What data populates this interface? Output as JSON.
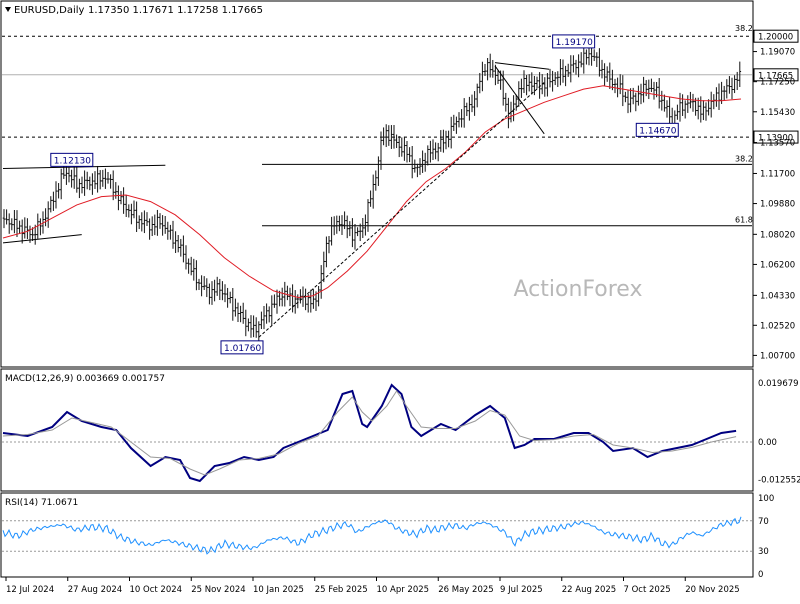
{
  "header": {
    "symbol": "EURUSD,Daily",
    "ohlc": "1.17350 1.17671 1.17258 1.17665"
  },
  "watermark": "ActionForex",
  "colors": {
    "price_bar": "#111111",
    "ma": "#e01b24",
    "macd": "#000080",
    "signal": "#999999",
    "rsi": "#1e90ff",
    "label_box": "#000080"
  },
  "chart_data": [
    {
      "type": "line",
      "title": "EURUSD,Daily",
      "price_axis_ticks": [
        "1.19070",
        "1.17250",
        "1.15430",
        "1.13570",
        "1.11700",
        "1.09880",
        "1.08020",
        "1.06200",
        "1.04330",
        "1.02520",
        "1.00700"
      ],
      "x_tick_labels": [
        "12 Jul 2024",
        "27 Aug 2024",
        "10 Oct 2024",
        "25 Nov 2024",
        "10 Jan 2025",
        "25 Feb 2025",
        "10 Apr 2025",
        "26 May 2025",
        "9 Jul 2025",
        "22 Aug 2025",
        "7 Oct 2025",
        "20 Nov 2025"
      ],
      "ylim": [
        1.003,
        1.211
      ],
      "levels": [
        {
          "value": 1.2,
          "label": "1.20000",
          "fib": "38.2"
        },
        {
          "value": 1.139,
          "label": "1.13900"
        }
      ],
      "current_price": {
        "value": 1.17665,
        "label": "1.17665"
      },
      "fib_levels": [
        {
          "value": 1.1225,
          "label": "38.2"
        },
        {
          "value": 1.0854,
          "label": "61.8"
        }
      ],
      "annotations": [
        {
          "label": "1.19170",
          "value": 1.1917
        },
        {
          "label": "1.14670",
          "value": 1.1467
        },
        {
          "label": "1.12130",
          "value": 1.1213
        },
        {
          "label": "1.01760",
          "value": 1.0176
        }
      ],
      "price_path": [
        [
          0,
          1.09
        ],
        [
          3,
          1.085
        ],
        [
          6,
          1.08
        ],
        [
          8,
          1.088
        ],
        [
          10,
          1.1
        ],
        [
          12,
          1.115
        ],
        [
          13,
          1.118
        ],
        [
          15,
          1.11
        ],
        [
          18,
          1.112
        ],
        [
          21,
          1.115
        ],
        [
          22,
          1.11
        ],
        [
          24,
          1.1
        ],
        [
          27,
          1.09
        ],
        [
          30,
          1.085
        ],
        [
          32,
          1.088
        ],
        [
          34,
          1.08
        ],
        [
          36,
          1.072
        ],
        [
          38,
          1.06
        ],
        [
          40,
          1.05
        ],
        [
          42,
          1.045
        ],
        [
          44,
          1.048
        ],
        [
          46,
          1.04
        ],
        [
          48,
          1.032
        ],
        [
          50,
          1.025
        ],
        [
          51,
          1.022
        ],
        [
          53,
          1.03
        ],
        [
          55,
          1.038
        ],
        [
          57,
          1.045
        ],
        [
          59,
          1.04
        ],
        [
          61,
          1.042
        ],
        [
          63,
          1.038
        ],
        [
          64,
          1.045
        ],
        [
          65,
          1.06
        ],
        [
          66,
          1.078
        ],
        [
          67,
          1.085
        ],
        [
          69,
          1.088
        ],
        [
          71,
          1.08
        ],
        [
          73,
          1.082
        ],
        [
          74,
          1.095
        ],
        [
          75,
          1.105
        ],
        [
          76,
          1.12
        ],
        [
          77,
          1.138
        ],
        [
          78,
          1.142
        ],
        [
          80,
          1.135
        ],
        [
          82,
          1.13
        ],
        [
          84,
          1.118
        ],
        [
          86,
          1.128
        ],
        [
          88,
          1.132
        ],
        [
          90,
          1.138
        ],
        [
          92,
          1.148
        ],
        [
          94,
          1.155
        ],
        [
          96,
          1.162
        ],
        [
          97,
          1.175
        ],
        [
          98,
          1.182
        ],
        [
          100,
          1.178
        ],
        [
          101,
          1.172
        ],
        [
          102,
          1.16
        ],
        [
          103,
          1.15
        ],
        [
          104,
          1.16
        ],
        [
          105,
          1.17
        ],
        [
          107,
          1.172
        ],
        [
          109,
          1.17
        ],
        [
          111,
          1.172
        ],
        [
          112,
          1.175
        ],
        [
          114,
          1.178
        ],
        [
          116,
          1.182
        ],
        [
          118,
          1.186
        ],
        [
          119,
          1.19
        ],
        [
          120,
          1.188
        ],
        [
          122,
          1.178
        ],
        [
          124,
          1.172
        ],
        [
          126,
          1.166
        ],
        [
          127,
          1.16
        ],
        [
          129,
          1.164
        ],
        [
          131,
          1.17
        ],
        [
          133,
          1.166
        ],
        [
          134,
          1.16
        ],
        [
          135,
          1.155
        ],
        [
          136,
          1.147
        ],
        [
          137,
          1.155
        ],
        [
          139,
          1.16
        ],
        [
          141,
          1.158
        ],
        [
          142,
          1.153
        ],
        [
          144,
          1.16
        ],
        [
          146,
          1.166
        ],
        [
          148,
          1.17
        ],
        [
          150,
          1.17665
        ]
      ],
      "ma_path": [
        [
          0,
          1.078
        ],
        [
          5,
          1.082
        ],
        [
          10,
          1.09
        ],
        [
          15,
          1.098
        ],
        [
          20,
          1.103
        ],
        [
          25,
          1.104
        ],
        [
          30,
          1.1
        ],
        [
          35,
          1.092
        ],
        [
          40,
          1.08
        ],
        [
          45,
          1.066
        ],
        [
          50,
          1.055
        ],
        [
          55,
          1.046
        ],
        [
          60,
          1.042
        ],
        [
          63,
          1.043
        ],
        [
          66,
          1.048
        ],
        [
          70,
          1.058
        ],
        [
          74,
          1.07
        ],
        [
          78,
          1.085
        ],
        [
          82,
          1.1
        ],
        [
          86,
          1.112
        ],
        [
          90,
          1.12
        ],
        [
          94,
          1.13
        ],
        [
          98,
          1.142
        ],
        [
          102,
          1.15
        ],
        [
          106,
          1.155
        ],
        [
          110,
          1.16
        ],
        [
          114,
          1.164
        ],
        [
          118,
          1.168
        ],
        [
          122,
          1.17
        ],
        [
          126,
          1.168
        ],
        [
          130,
          1.166
        ],
        [
          134,
          1.164
        ],
        [
          138,
          1.162
        ],
        [
          142,
          1.161
        ],
        [
          146,
          1.161
        ],
        [
          150,
          1.162
        ]
      ]
    },
    {
      "type": "line",
      "title": "MACD(12,26,9) 0.003669 0.001757",
      "y_ticks": [
        "0.019679",
        "0.00",
        "-0.012552"
      ],
      "ylim": [
        -0.015,
        0.022
      ],
      "zero": 0.0,
      "series": [
        {
          "name": "MACD",
          "values": [
            [
              0,
              0.003
            ],
            [
              5,
              0.002
            ],
            [
              10,
              0.005
            ],
            [
              13,
              0.01
            ],
            [
              16,
              0.007
            ],
            [
              20,
              0.005
            ],
            [
              23,
              0.004
            ],
            [
              26,
              -0.002
            ],
            [
              30,
              -0.008
            ],
            [
              33,
              -0.005
            ],
            [
              36,
              -0.006
            ],
            [
              38,
              -0.012
            ],
            [
              40,
              -0.013
            ],
            [
              43,
              -0.008
            ],
            [
              46,
              -0.007
            ],
            [
              49,
              -0.005
            ],
            [
              52,
              -0.006
            ],
            [
              55,
              -0.005
            ],
            [
              57,
              -0.002
            ],
            [
              60,
              0.0
            ],
            [
              63,
              0.002
            ],
            [
              66,
              0.004
            ],
            [
              69,
              0.016
            ],
            [
              71,
              0.017
            ],
            [
              73,
              0.006
            ],
            [
              74,
              0.005
            ],
            [
              77,
              0.012
            ],
            [
              79,
              0.019
            ],
            [
              81,
              0.016
            ],
            [
              83,
              0.005
            ],
            [
              85,
              0.002
            ],
            [
              87,
              0.004
            ],
            [
              89,
              0.006
            ],
            [
              92,
              0.004
            ],
            [
              96,
              0.009
            ],
            [
              99,
              0.012
            ],
            [
              102,
              0.008
            ],
            [
              104,
              -0.002
            ],
            [
              106,
              -0.001
            ],
            [
              108,
              0.001
            ],
            [
              112,
              0.001
            ],
            [
              116,
              0.003
            ],
            [
              119,
              0.003
            ],
            [
              122,
              0.0
            ],
            [
              124,
              -0.003
            ],
            [
              128,
              -0.002
            ],
            [
              131,
              -0.005
            ],
            [
              134,
              -0.003
            ],
            [
              137,
              -0.002
            ],
            [
              140,
              -0.001
            ],
            [
              143,
              0.001
            ],
            [
              146,
              0.003
            ],
            [
              149,
              0.0037
            ]
          ]
        },
        {
          "name": "Signal",
          "values": [
            [
              0,
              0.002
            ],
            [
              5,
              0.0025
            ],
            [
              10,
              0.004
            ],
            [
              14,
              0.008
            ],
            [
              18,
              0.0065
            ],
            [
              22,
              0.005
            ],
            [
              26,
              0.0
            ],
            [
              30,
              -0.005
            ],
            [
              34,
              -0.0055
            ],
            [
              38,
              -0.009
            ],
            [
              41,
              -0.011
            ],
            [
              44,
              -0.009
            ],
            [
              48,
              -0.006
            ],
            [
              52,
              -0.0055
            ],
            [
              56,
              -0.004
            ],
            [
              60,
              -0.0005
            ],
            [
              64,
              0.002
            ],
            [
              68,
              0.01
            ],
            [
              71,
              0.015
            ],
            [
              73,
              0.01
            ],
            [
              75,
              0.007
            ],
            [
              78,
              0.012
            ],
            [
              80,
              0.017
            ],
            [
              82,
              0.012
            ],
            [
              85,
              0.005
            ],
            [
              88,
              0.0045
            ],
            [
              92,
              0.0045
            ],
            [
              96,
              0.007
            ],
            [
              99,
              0.0105
            ],
            [
              102,
              0.009
            ],
            [
              105,
              0.002
            ],
            [
              108,
              0.0005
            ],
            [
              112,
              0.0008
            ],
            [
              116,
              0.002
            ],
            [
              120,
              0.0025
            ],
            [
              124,
              -0.001
            ],
            [
              128,
              -0.002
            ],
            [
              132,
              -0.0035
            ],
            [
              136,
              -0.003
            ],
            [
              140,
              -0.0018
            ],
            [
              144,
              0.0
            ],
            [
              149,
              0.0018
            ]
          ]
        }
      ]
    },
    {
      "type": "line",
      "title": "RSI(14) 71.0671",
      "y_ticks": [
        "100",
        "70",
        "30",
        "0"
      ],
      "ylim": [
        0,
        100
      ],
      "level_lines": [
        70,
        30
      ],
      "series": [
        {
          "name": "RSI",
          "values": [
            [
              0,
              55
            ],
            [
              3,
              50
            ],
            [
              6,
              58
            ],
            [
              9,
              62
            ],
            [
              12,
              65
            ],
            [
              15,
              58
            ],
            [
              18,
              62
            ],
            [
              21,
              60
            ],
            [
              24,
              48
            ],
            [
              27,
              42
            ],
            [
              30,
              38
            ],
            [
              33,
              45
            ],
            [
              36,
              40
            ],
            [
              39,
              35
            ],
            [
              42,
              30
            ],
            [
              45,
              40
            ],
            [
              48,
              36
            ],
            [
              51,
              34
            ],
            [
              54,
              45
            ],
            [
              57,
              48
            ],
            [
              60,
              40
            ],
            [
              63,
              52
            ],
            [
              66,
              58
            ],
            [
              68,
              63
            ],
            [
              70,
              66
            ],
            [
              72,
              55
            ],
            [
              74,
              62
            ],
            [
              76,
              68
            ],
            [
              78,
              70
            ],
            [
              80,
              60
            ],
            [
              82,
              55
            ],
            [
              84,
              52
            ],
            [
              86,
              60
            ],
            [
              88,
              58
            ],
            [
              90,
              62
            ],
            [
              92,
              64
            ],
            [
              94,
              60
            ],
            [
              96,
              66
            ],
            [
              98,
              68
            ],
            [
              100,
              62
            ],
            [
              102,
              55
            ],
            [
              104,
              40
            ],
            [
              106,
              52
            ],
            [
              108,
              56
            ],
            [
              110,
              58
            ],
            [
              112,
              60
            ],
            [
              114,
              62
            ],
            [
              116,
              66
            ],
            [
              118,
              68
            ],
            [
              120,
              63
            ],
            [
              122,
              55
            ],
            [
              124,
              52
            ],
            [
              126,
              50
            ],
            [
              128,
              48
            ],
            [
              130,
              45
            ],
            [
              132,
              50
            ],
            [
              134,
              40
            ],
            [
              136,
              38
            ],
            [
              138,
              48
            ],
            [
              140,
              55
            ],
            [
              142,
              50
            ],
            [
              144,
              58
            ],
            [
              146,
              65
            ],
            [
              148,
              68
            ],
            [
              150,
              71
            ]
          ]
        }
      ]
    }
  ]
}
